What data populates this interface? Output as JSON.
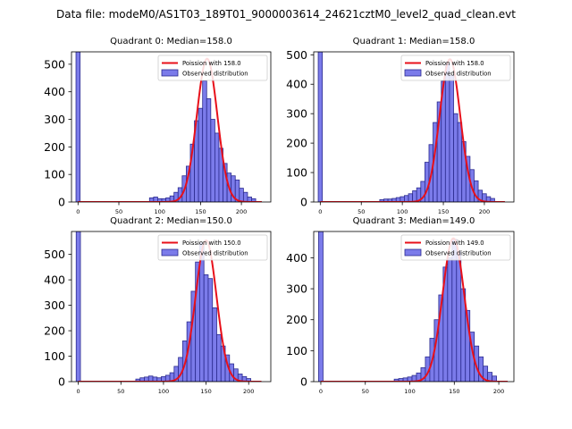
{
  "figure_title": "Data file: modeM0/AS1T03_189T01_9000003614_24621cztM0_level2_quad_clean.evt",
  "chart_data": [
    {
      "type": "bar",
      "title": "Quadrant 0: Median=158.0",
      "xlim": [
        -8,
        236
      ],
      "ylim": [
        0,
        545
      ],
      "xticks": [
        0,
        50,
        100,
        150,
        200
      ],
      "yticks": [
        0,
        100,
        200,
        300,
        400,
        500
      ],
      "legend_position": "top-right",
      "legend": [
        "Poission with 158.0",
        "Observed distribution"
      ],
      "poisson_mean": 158,
      "poisson_peak": 520,
      "poisson_range": [
        0,
        225
      ],
      "bin_width": 5,
      "bins": [
        {
          "x": 0,
          "count": 545
        },
        {
          "x": 90,
          "count": 15
        },
        {
          "x": 95,
          "count": 18
        },
        {
          "x": 100,
          "count": 12
        },
        {
          "x": 105,
          "count": 12
        },
        {
          "x": 110,
          "count": 15
        },
        {
          "x": 115,
          "count": 22
        },
        {
          "x": 120,
          "count": 35
        },
        {
          "x": 125,
          "count": 52
        },
        {
          "x": 130,
          "count": 95
        },
        {
          "x": 135,
          "count": 130
        },
        {
          "x": 140,
          "count": 210
        },
        {
          "x": 145,
          "count": 295
        },
        {
          "x": 150,
          "count": 340
        },
        {
          "x": 155,
          "count": 440
        },
        {
          "x": 160,
          "count": 375
        },
        {
          "x": 165,
          "count": 300
        },
        {
          "x": 170,
          "count": 250
        },
        {
          "x": 175,
          "count": 195
        },
        {
          "x": 180,
          "count": 140
        },
        {
          "x": 185,
          "count": 105
        },
        {
          "x": 190,
          "count": 95
        },
        {
          "x": 195,
          "count": 80
        },
        {
          "x": 200,
          "count": 50
        },
        {
          "x": 205,
          "count": 35
        },
        {
          "x": 210,
          "count": 18
        },
        {
          "x": 215,
          "count": 12
        }
      ]
    },
    {
      "type": "bar",
      "title": "Quadrant 1: Median=158.0",
      "xlim": [
        -8,
        236
      ],
      "ylim": [
        0,
        510
      ],
      "xticks": [
        0,
        50,
        100,
        150,
        200
      ],
      "yticks": [
        0,
        100,
        200,
        300,
        400,
        500
      ],
      "legend_position": "top-right",
      "legend": [
        "Poission with 158.0",
        "Observed distribution"
      ],
      "poisson_mean": 158,
      "poisson_peak": 485,
      "poisson_range": [
        0,
        225
      ],
      "bin_width": 5,
      "bins": [
        {
          "x": 0,
          "count": 510
        },
        {
          "x": 75,
          "count": 8
        },
        {
          "x": 80,
          "count": 10
        },
        {
          "x": 85,
          "count": 10
        },
        {
          "x": 90,
          "count": 12
        },
        {
          "x": 95,
          "count": 15
        },
        {
          "x": 100,
          "count": 18
        },
        {
          "x": 105,
          "count": 22
        },
        {
          "x": 110,
          "count": 28
        },
        {
          "x": 115,
          "count": 38
        },
        {
          "x": 120,
          "count": 48
        },
        {
          "x": 125,
          "count": 70
        },
        {
          "x": 130,
          "count": 135
        },
        {
          "x": 135,
          "count": 195
        },
        {
          "x": 140,
          "count": 270
        },
        {
          "x": 145,
          "count": 340
        },
        {
          "x": 150,
          "count": 410
        },
        {
          "x": 155,
          "count": 470
        },
        {
          "x": 160,
          "count": 430
        },
        {
          "x": 165,
          "count": 300
        },
        {
          "x": 170,
          "count": 270
        },
        {
          "x": 175,
          "count": 205
        },
        {
          "x": 180,
          "count": 155
        },
        {
          "x": 185,
          "count": 110
        },
        {
          "x": 190,
          "count": 72
        },
        {
          "x": 195,
          "count": 40
        },
        {
          "x": 200,
          "count": 28
        },
        {
          "x": 205,
          "count": 18
        },
        {
          "x": 210,
          "count": 12
        }
      ]
    },
    {
      "type": "bar",
      "title": "Quadrant 2: Median=150.0",
      "xlim": [
        -8,
        226
      ],
      "ylim": [
        0,
        590
      ],
      "xticks": [
        0,
        50,
        100,
        150,
        200
      ],
      "yticks": [
        0,
        100,
        200,
        300,
        400,
        500
      ],
      "legend_position": "top-right",
      "legend": [
        "Poission with 150.0",
        "Observed distribution"
      ],
      "poisson_mean": 150,
      "poisson_peak": 555,
      "poisson_range": [
        0,
        215
      ],
      "bin_width": 5,
      "bins": [
        {
          "x": 0,
          "count": 590
        },
        {
          "x": 70,
          "count": 10
        },
        {
          "x": 75,
          "count": 15
        },
        {
          "x": 80,
          "count": 18
        },
        {
          "x": 85,
          "count": 22
        },
        {
          "x": 90,
          "count": 18
        },
        {
          "x": 95,
          "count": 15
        },
        {
          "x": 100,
          "count": 20
        },
        {
          "x": 105,
          "count": 25
        },
        {
          "x": 110,
          "count": 35
        },
        {
          "x": 115,
          "count": 60
        },
        {
          "x": 120,
          "count": 95
        },
        {
          "x": 125,
          "count": 160
        },
        {
          "x": 130,
          "count": 235
        },
        {
          "x": 135,
          "count": 355
        },
        {
          "x": 140,
          "count": 470
        },
        {
          "x": 145,
          "count": 545
        },
        {
          "x": 150,
          "count": 420
        },
        {
          "x": 155,
          "count": 405
        },
        {
          "x": 160,
          "count": 290
        },
        {
          "x": 165,
          "count": 185
        },
        {
          "x": 170,
          "count": 140
        },
        {
          "x": 175,
          "count": 105
        },
        {
          "x": 180,
          "count": 70
        },
        {
          "x": 185,
          "count": 50
        },
        {
          "x": 190,
          "count": 30
        },
        {
          "x": 195,
          "count": 20
        },
        {
          "x": 200,
          "count": 12
        }
      ]
    },
    {
      "type": "bar",
      "title": "Quadrant 3: Median=149.0",
      "xlim": [
        -8,
        217
      ],
      "ylim": [
        0,
        485
      ],
      "xticks": [
        0,
        50,
        100,
        150,
        200
      ],
      "yticks": [
        0,
        100,
        200,
        300,
        400
      ],
      "legend_position": "top-right",
      "legend": [
        "Poission with 149.0",
        "Observed distribution"
      ],
      "poisson_mean": 149,
      "poisson_peak": 463,
      "poisson_range": [
        0,
        210
      ],
      "bin_width": 5,
      "bins": [
        {
          "x": 0,
          "count": 485
        },
        {
          "x": 85,
          "count": 8
        },
        {
          "x": 90,
          "count": 10
        },
        {
          "x": 95,
          "count": 12
        },
        {
          "x": 100,
          "count": 15
        },
        {
          "x": 105,
          "count": 20
        },
        {
          "x": 110,
          "count": 28
        },
        {
          "x": 115,
          "count": 45
        },
        {
          "x": 120,
          "count": 80
        },
        {
          "x": 125,
          "count": 140
        },
        {
          "x": 130,
          "count": 200
        },
        {
          "x": 135,
          "count": 280
        },
        {
          "x": 140,
          "count": 370
        },
        {
          "x": 145,
          "count": 400
        },
        {
          "x": 150,
          "count": 460
        },
        {
          "x": 155,
          "count": 420
        },
        {
          "x": 160,
          "count": 300
        },
        {
          "x": 165,
          "count": 230
        },
        {
          "x": 170,
          "count": 160
        },
        {
          "x": 175,
          "count": 115
        },
        {
          "x": 180,
          "count": 80
        },
        {
          "x": 185,
          "count": 50
        },
        {
          "x": 190,
          "count": 30
        },
        {
          "x": 195,
          "count": 18
        }
      ]
    }
  ],
  "colors": {
    "bar_fill": "#7b7bea",
    "bar_edge": "#2b2b8f",
    "curve": "#e8101a"
  }
}
